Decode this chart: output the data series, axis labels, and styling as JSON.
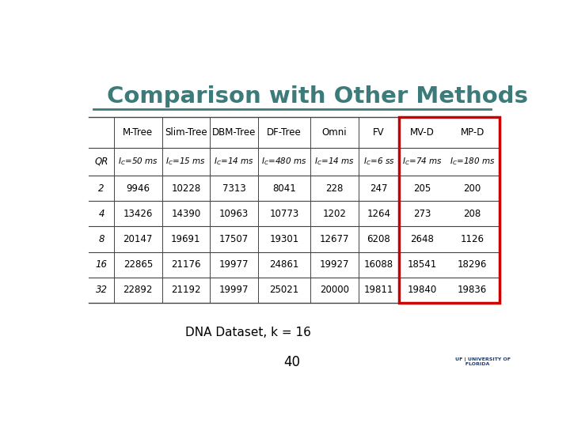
{
  "title": "Comparison with Other Methods",
  "title_color": "#3d7a7a",
  "bg_color": "#ffffff",
  "subtitle": "DNA Dataset, k = 16",
  "page_number": "40",
  "col_headers": [
    "M-Tree",
    "Slim-Tree",
    "DBM-Tree",
    "DF-Tree",
    "Omni",
    "FV",
    "MV-D",
    "MP-D"
  ],
  "col_subheaders": [
    "IC=50 ms",
    "IC=15 ms",
    "IC=14 ms",
    "IC=480 ms",
    "IC=14 ms",
    "IC=6 ss",
    "IC=74 ms",
    "IC=180 ms"
  ],
  "qr_label": "QR",
  "data": [
    [
      "2",
      "9946",
      "10228",
      "7313",
      "8041",
      "228",
      "247",
      "205",
      "200"
    ],
    [
      "4",
      "13426",
      "14390",
      "10963",
      "10773",
      "1202",
      "1264",
      "273",
      "208"
    ],
    [
      "8",
      "20147",
      "19691",
      "17507",
      "19301",
      "12677",
      "6208",
      "2648",
      "1126"
    ],
    [
      "16",
      "22865",
      "21176",
      "19977",
      "24861",
      "19927",
      "16088",
      "18541",
      "18296"
    ],
    [
      "32",
      "22892",
      "21192",
      "19997",
      "25021",
      "20000",
      "19811",
      "19840",
      "19836"
    ]
  ],
  "highlight_color": "#cc0000",
  "border_color": "#5a8a8a",
  "line_color": "#444444"
}
